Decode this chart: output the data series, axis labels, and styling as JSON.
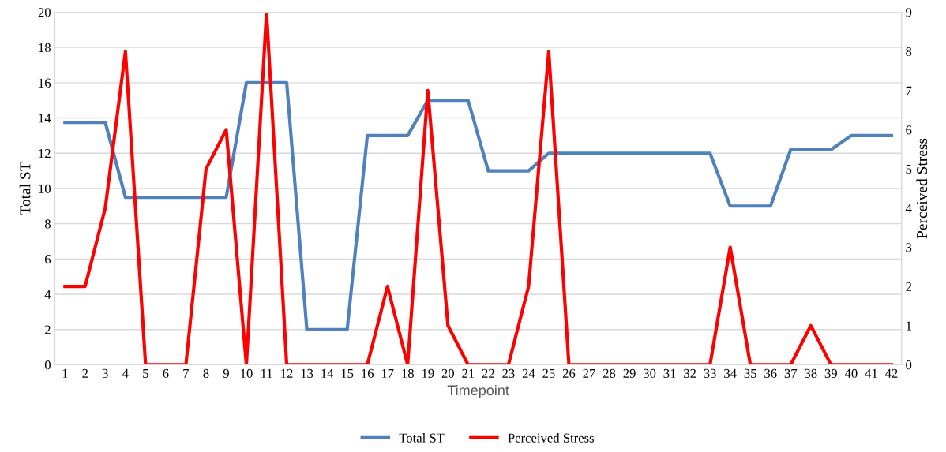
{
  "chart_data": {
    "type": "line",
    "xlabel": "Timepoint",
    "ylabel": "Total ST",
    "y2label": "Perceived Stress",
    "categories": [
      "1",
      "2",
      "3",
      "4",
      "5",
      "6",
      "7",
      "8",
      "9",
      "10",
      "11",
      "12",
      "13",
      "14",
      "15",
      "16",
      "17",
      "18",
      "19",
      "20",
      "21",
      "22",
      "23",
      "24",
      "25",
      "26",
      "27",
      "28",
      "29",
      "30",
      "31",
      "32",
      "33",
      "34",
      "35",
      "36",
      "37",
      "38",
      "39",
      "40",
      "41",
      "42"
    ],
    "series": [
      {
        "name": "Total ST",
        "color": "#4f81bd",
        "values": [
          13.75,
          13.75,
          13.75,
          9.5,
          9.5,
          9.5,
          9.5,
          9.5,
          9.5,
          16,
          16,
          16,
          2,
          2,
          2,
          13,
          13,
          13,
          15,
          15,
          15,
          11,
          11,
          11,
          12,
          12,
          12,
          12,
          12,
          12,
          12,
          12,
          12,
          9,
          9,
          9,
          12.2,
          12.2,
          12.2,
          13,
          13,
          13
        ]
      },
      {
        "name": "Perceived Stress",
        "color": "#ff0000",
        "axis": "y2",
        "values": [
          2,
          2,
          4,
          8,
          0,
          0,
          0,
          5,
          6,
          0,
          9,
          0,
          0,
          0,
          0,
          0,
          2,
          0,
          7,
          1,
          0,
          0,
          0,
          2,
          8,
          0,
          0,
          0,
          0,
          0,
          0,
          0,
          0,
          3,
          0,
          0,
          0,
          1,
          0,
          0,
          0,
          0
        ]
      }
    ],
    "ylim": [
      0,
      20
    ],
    "yticks": [
      0,
      2,
      4,
      6,
      8,
      10,
      12,
      14,
      16,
      18,
      20
    ],
    "y2lim": [
      0,
      9
    ],
    "y2ticks": [
      0,
      1,
      2,
      3,
      4,
      5,
      6,
      7,
      8,
      9
    ],
    "grid": "y",
    "legend": "bottom",
    "marker": "none",
    "line_style": "solid"
  }
}
